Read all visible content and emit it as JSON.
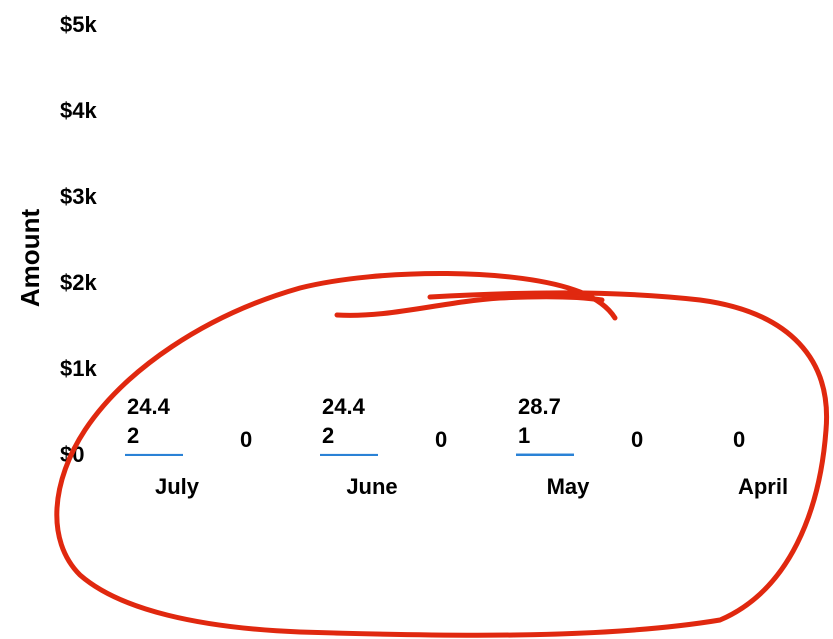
{
  "chart_data": {
    "type": "bar",
    "ylabel": "Amount",
    "y_ticks": [
      "$0",
      "$1k",
      "$2k",
      "$3k",
      "$4k",
      "$5k"
    ],
    "ylim": [
      0,
      5000
    ],
    "categories": [
      "July",
      "June",
      "May",
      "April"
    ],
    "series": [
      {
        "values": [
          24.42,
          24.42,
          28.71,
          null
        ],
        "value_labels": [
          "24.42",
          "24.42",
          "28.71",
          ""
        ],
        "color": "#2a82d6"
      },
      {
        "values": [
          0,
          0,
          0,
          0
        ],
        "value_labels": [
          "0",
          "0",
          "0",
          "0"
        ],
        "color": "#2a82d6"
      }
    ],
    "annotation_color": "#e0280f"
  }
}
